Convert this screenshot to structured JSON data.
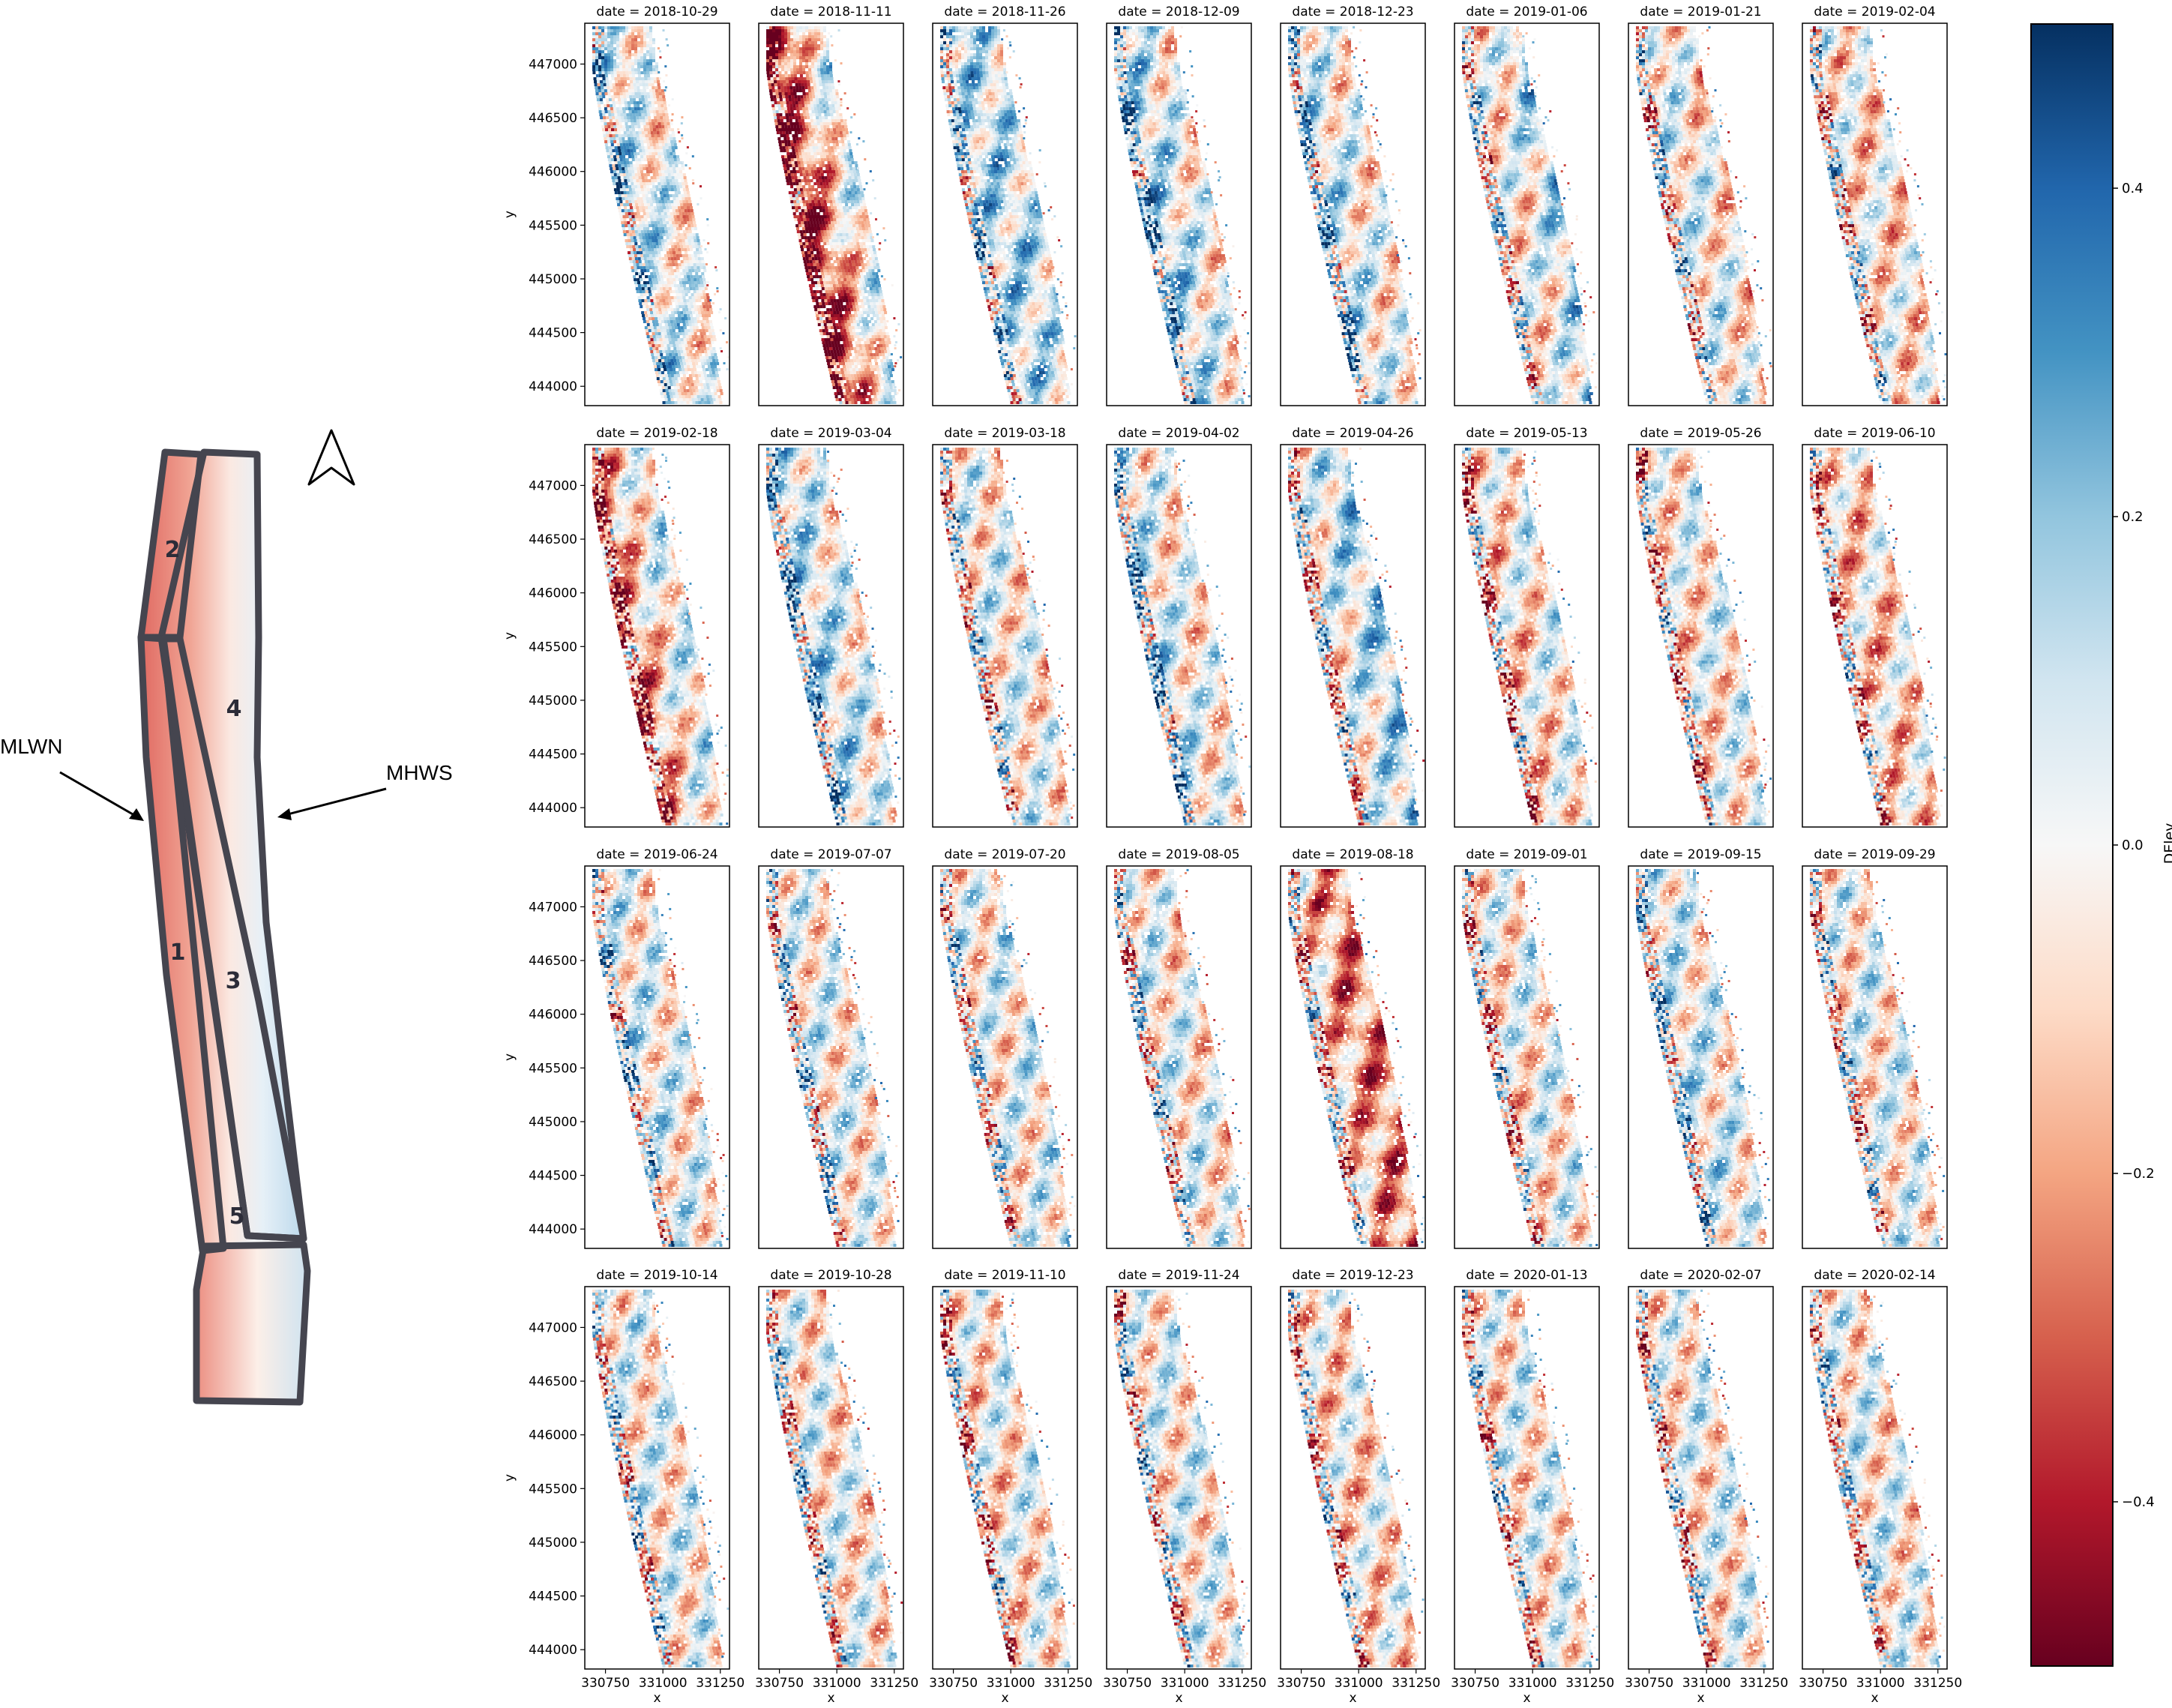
{
  "map": {
    "callouts": [
      "MLWN",
      "MHWS"
    ],
    "zones": [
      "1",
      "2",
      "3",
      "4",
      "5"
    ],
    "north_arrow_icon": "north-arrow-icon",
    "colors": {
      "outline": "#45454f",
      "sea_side": "#e9847a",
      "land_side": "#cfe4f1"
    }
  },
  "chart_data": {
    "type": "heatmap",
    "title": "",
    "xlabel": "x",
    "ylabel": "y",
    "x_ticks": [
      330750,
      331000,
      331250
    ],
    "y_ticks": [
      444000,
      444500,
      445000,
      445500,
      446000,
      446500,
      447000
    ],
    "xlim": [
      330660,
      331290
    ],
    "ylim": [
      443820,
      447380
    ],
    "dates": [
      "date = 2018-10-29",
      "date = 2018-11-11",
      "date = 2018-11-26",
      "date = 2018-12-09",
      "date = 2018-12-23",
      "date = 2019-01-06",
      "date = 2019-01-21",
      "date = 2019-02-04",
      "date = 2019-02-18",
      "date = 2019-03-04",
      "date = 2019-03-18",
      "date = 2019-04-02",
      "date = 2019-04-26",
      "date = 2019-05-13",
      "date = 2019-05-26",
      "date = 2019-06-10",
      "date = 2019-06-24",
      "date = 2019-07-07",
      "date = 2019-07-20",
      "date = 2019-08-05",
      "date = 2019-08-18",
      "date = 2019-09-01",
      "date = 2019-09-15",
      "date = 2019-09-29",
      "date = 2019-10-14",
      "date = 2019-10-28",
      "date = 2019-11-10",
      "date = 2019-11-24",
      "date = 2019-12-23",
      "date = 2020-01-13",
      "date = 2020-02-07",
      "date = 2020-02-14"
    ],
    "panel_tendency": [
      0.1,
      -0.3,
      0.1,
      0.15,
      0.12,
      0.18,
      -0.12,
      -0.05,
      -0.22,
      0.1,
      -0.05,
      0.15,
      0.12,
      -0.08,
      -0.05,
      -0.08,
      0.05,
      0.02,
      0.05,
      -0.08,
      -0.18,
      -0.05,
      0.05,
      0.0,
      0.0,
      -0.03,
      -0.05,
      0.0,
      -0.05,
      -0.03,
      -0.05,
      -0.05
    ],
    "colorbar": {
      "label": "DElev",
      "ticks": [
        -0.4,
        -0.2,
        0.0,
        0.2,
        0.4
      ],
      "tick_labels": [
        "−0.4",
        "−0.2",
        "0.0",
        "0.2",
        "0.4"
      ],
      "range": [
        -0.5,
        0.5
      ],
      "colormap": "RdBu",
      "stops": [
        "#67001f",
        "#b2182b",
        "#d6604d",
        "#f4a582",
        "#fddbc7",
        "#f7f7f7",
        "#d1e5f0",
        "#92c5de",
        "#4393c3",
        "#2166ac",
        "#053061"
      ]
    }
  }
}
